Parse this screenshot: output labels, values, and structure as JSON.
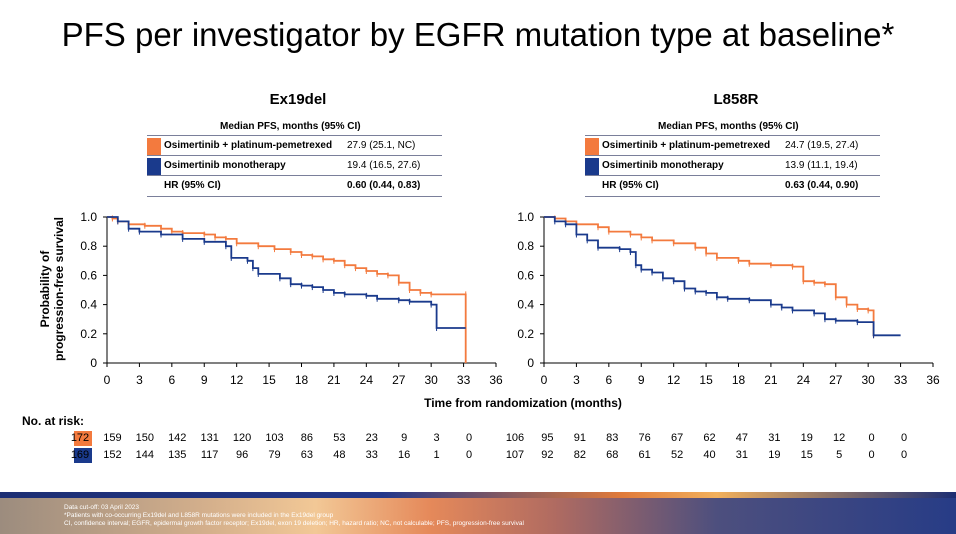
{
  "title": "PFS per investigator by EGFR mutation type at baseline*",
  "colors": {
    "combo": "#f37a3e",
    "mono": "#1a3a8c"
  },
  "y_axis_label_line1": "Probability of",
  "y_axis_label_line2": "progression-free survival",
  "x_axis_label": "Time from randomization (months)",
  "risk_title": "No. at risk:",
  "panels": [
    {
      "name": "Ex19del",
      "table_header": "Median PFS, months (95% CI)",
      "rows": [
        {
          "label": "Osimertinib + platinum-pemetrexed",
          "value": "27.9 (25.1, NC)"
        },
        {
          "label": "Osimertinib monotherapy",
          "value": "19.4 (16.5, 27.6)"
        }
      ],
      "hr_label": "HR (95% CI)",
      "hr_value": "0.60 (0.44, 0.83)"
    },
    {
      "name": "L858R",
      "table_header": "Median PFS, months (95% CI)",
      "rows": [
        {
          "label": "Osimertinib + platinum-pemetrexed",
          "value": "24.7 (19.5, 27.4)"
        },
        {
          "label": "Osimertinib monotherapy",
          "value": "13.9 (11.1, 19.4)"
        }
      ],
      "hr_label": "HR (95% CI)",
      "hr_value": "0.63 (0.44, 0.90)"
    }
  ],
  "chart_data": [
    {
      "type": "line",
      "title": "Ex19del",
      "xlabel": "Time from randomization (months)",
      "ylabel": "Probability of progression-free survival",
      "xlim": [
        0,
        36
      ],
      "ylim": [
        0,
        1
      ],
      "x_ticks": [
        "0",
        "3",
        "6",
        "9",
        "12",
        "15",
        "18",
        "21",
        "24",
        "27",
        "30",
        "33",
        "36"
      ],
      "y_ticks": [
        "0",
        "0.2",
        "0.4",
        "0.6",
        "0.8",
        "1.0"
      ],
      "series": [
        {
          "name": "Osimertinib + platinum-pemetrexed",
          "color": "#f37a3e",
          "points": [
            [
              0,
              1.0
            ],
            [
              0.5,
              0.99
            ],
            [
              1,
              0.97
            ],
            [
              2,
              0.95
            ],
            [
              3.5,
              0.94
            ],
            [
              5,
              0.92
            ],
            [
              6,
              0.9
            ],
            [
              7,
              0.89
            ],
            [
              9,
              0.88
            ],
            [
              10,
              0.86
            ],
            [
              11,
              0.85
            ],
            [
              12,
              0.82
            ],
            [
              14,
              0.8
            ],
            [
              15.5,
              0.78
            ],
            [
              17,
              0.76
            ],
            [
              18,
              0.74
            ],
            [
              19,
              0.73
            ],
            [
              20,
              0.71
            ],
            [
              21,
              0.7
            ],
            [
              22,
              0.67
            ],
            [
              23,
              0.65
            ],
            [
              24,
              0.63
            ],
            [
              25,
              0.61
            ],
            [
              26,
              0.6
            ],
            [
              27,
              0.55
            ],
            [
              28,
              0.5
            ],
            [
              29,
              0.48
            ],
            [
              30,
              0.47
            ],
            [
              33.2,
              0.47
            ],
            [
              33.2,
              0.0
            ]
          ]
        },
        {
          "name": "Osimertinib monotherapy",
          "color": "#1a3a8c",
          "points": [
            [
              0,
              1.0
            ],
            [
              1,
              0.97
            ],
            [
              2,
              0.92
            ],
            [
              3,
              0.9
            ],
            [
              5,
              0.88
            ],
            [
              7,
              0.85
            ],
            [
              9,
              0.83
            ],
            [
              11,
              0.8
            ],
            [
              11.5,
              0.72
            ],
            [
              13,
              0.7
            ],
            [
              13.5,
              0.65
            ],
            [
              14,
              0.61
            ],
            [
              16,
              0.58
            ],
            [
              17,
              0.54
            ],
            [
              18,
              0.53
            ],
            [
              19,
              0.52
            ],
            [
              20,
              0.5
            ],
            [
              21,
              0.48
            ],
            [
              22,
              0.47
            ],
            [
              24,
              0.46
            ],
            [
              25,
              0.44
            ],
            [
              27,
              0.43
            ],
            [
              28,
              0.42
            ],
            [
              30,
              0.4
            ],
            [
              30.5,
              0.24
            ],
            [
              33.2,
              0.24
            ]
          ]
        }
      ],
      "risk_combo": [
        "172",
        "159",
        "150",
        "142",
        "131",
        "120",
        "103",
        "86",
        "53",
        "23",
        "9",
        "3",
        "0"
      ],
      "risk_mono": [
        "169",
        "152",
        "144",
        "135",
        "117",
        "96",
        "79",
        "63",
        "48",
        "33",
        "16",
        "1",
        "0"
      ]
    },
    {
      "type": "line",
      "title": "L858R",
      "xlabel": "Time from randomization (months)",
      "ylabel": "Probability of progression-free survival",
      "xlim": [
        0,
        36
      ],
      "ylim": [
        0,
        1
      ],
      "x_ticks": [
        "0",
        "3",
        "6",
        "9",
        "12",
        "15",
        "18",
        "21",
        "24",
        "27",
        "30",
        "33",
        "36"
      ],
      "y_ticks": [
        "0",
        "0.2",
        "0.4",
        "0.6",
        "0.8",
        "1.0"
      ],
      "series": [
        {
          "name": "Osimertinib + platinum-pemetrexed",
          "color": "#f37a3e",
          "points": [
            [
              0,
              1.0
            ],
            [
              1,
              0.99
            ],
            [
              2,
              0.97
            ],
            [
              3,
              0.95
            ],
            [
              5,
              0.93
            ],
            [
              6,
              0.9
            ],
            [
              8,
              0.88
            ],
            [
              9,
              0.86
            ],
            [
              10,
              0.84
            ],
            [
              12,
              0.82
            ],
            [
              14,
              0.79
            ],
            [
              15,
              0.75
            ],
            [
              16,
              0.72
            ],
            [
              18,
              0.7
            ],
            [
              19,
              0.68
            ],
            [
              21,
              0.67
            ],
            [
              23,
              0.66
            ],
            [
              24,
              0.56
            ],
            [
              25,
              0.55
            ],
            [
              26,
              0.54
            ],
            [
              27,
              0.45
            ],
            [
              28,
              0.4
            ],
            [
              29,
              0.37
            ],
            [
              30,
              0.36
            ],
            [
              30.5,
              0.19
            ],
            [
              30.6,
              0.19
            ]
          ]
        },
        {
          "name": "Osimertinib monotherapy",
          "color": "#1a3a8c",
          "points": [
            [
              0,
              1.0
            ],
            [
              1,
              0.97
            ],
            [
              2,
              0.95
            ],
            [
              3,
              0.88
            ],
            [
              4,
              0.84
            ],
            [
              5,
              0.79
            ],
            [
              7,
              0.78
            ],
            [
              8,
              0.76
            ],
            [
              8.5,
              0.67
            ],
            [
              9,
              0.64
            ],
            [
              10,
              0.62
            ],
            [
              11,
              0.58
            ],
            [
              12,
              0.56
            ],
            [
              13,
              0.51
            ],
            [
              14,
              0.49
            ],
            [
              15,
              0.48
            ],
            [
              16,
              0.45
            ],
            [
              17,
              0.44
            ],
            [
              19,
              0.43
            ],
            [
              21,
              0.4
            ],
            [
              22,
              0.38
            ],
            [
              23,
              0.36
            ],
            [
              25,
              0.34
            ],
            [
              26,
              0.3
            ],
            [
              27,
              0.29
            ],
            [
              29,
              0.28
            ],
            [
              30.5,
              0.19
            ],
            [
              33,
              0.19
            ]
          ]
        }
      ],
      "risk_combo": [
        "106",
        "95",
        "91",
        "83",
        "76",
        "67",
        "62",
        "47",
        "31",
        "19",
        "12",
        "0",
        "0"
      ],
      "risk_mono": [
        "107",
        "92",
        "82",
        "68",
        "61",
        "52",
        "40",
        "31",
        "19",
        "15",
        "5",
        "0",
        "0"
      ]
    }
  ],
  "footer": {
    "line1": "Data cut-off: 03 April 2023",
    "line2": "*Patients with co-occurring Ex19del and L858R mutations were included in the Ex19del group",
    "line3": "CI, confidence interval; EGFR, epidermal growth factor receptor; Ex19del, exon 19 deletion; HR, hazard ratio; NC, not calculable; PFS, progression-free survival"
  }
}
